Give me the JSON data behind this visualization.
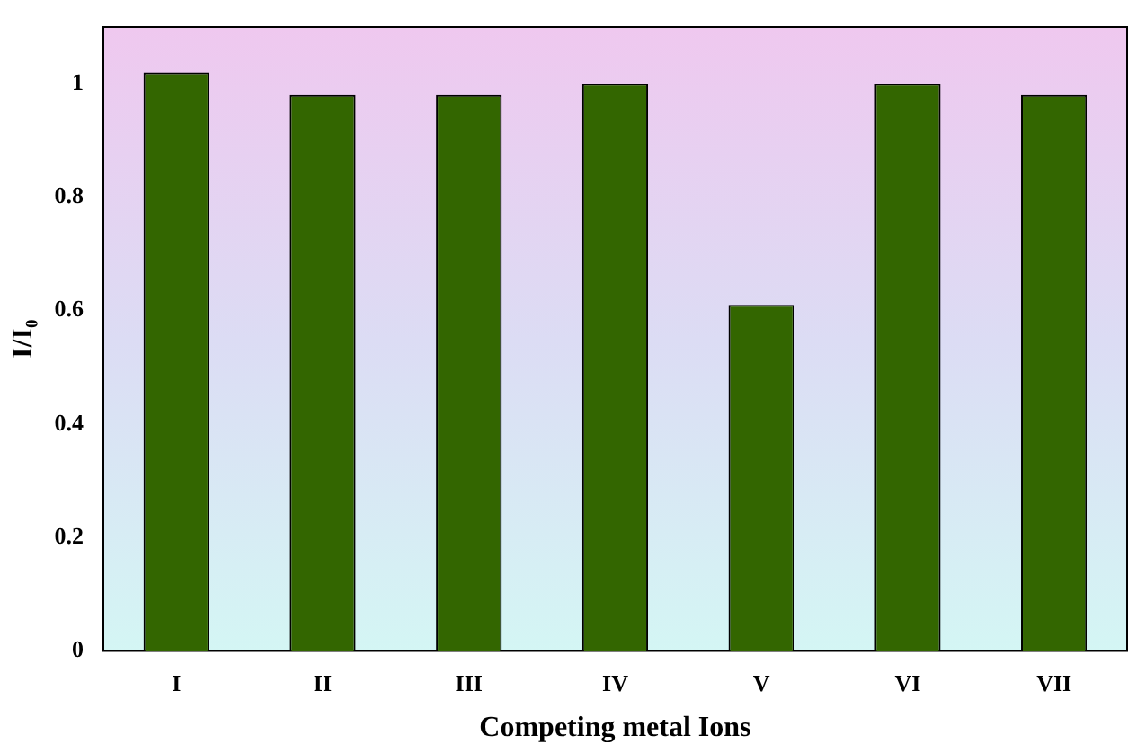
{
  "chart_data": {
    "type": "bar",
    "xlabel": "Competing metal Ions",
    "ylabel": "I/I₀",
    "categories": [
      "I",
      "II",
      "III",
      "IV",
      "V",
      "VI",
      "VII"
    ],
    "values": [
      1.02,
      0.98,
      0.98,
      1.0,
      0.61,
      1.0,
      0.98
    ],
    "color": "#336600",
    "ylim": [
      0,
      1.1
    ],
    "yticks": [
      0,
      0.2,
      0.4,
      0.6,
      0.8,
      1
    ],
    "grid": false,
    "legend": false
  }
}
